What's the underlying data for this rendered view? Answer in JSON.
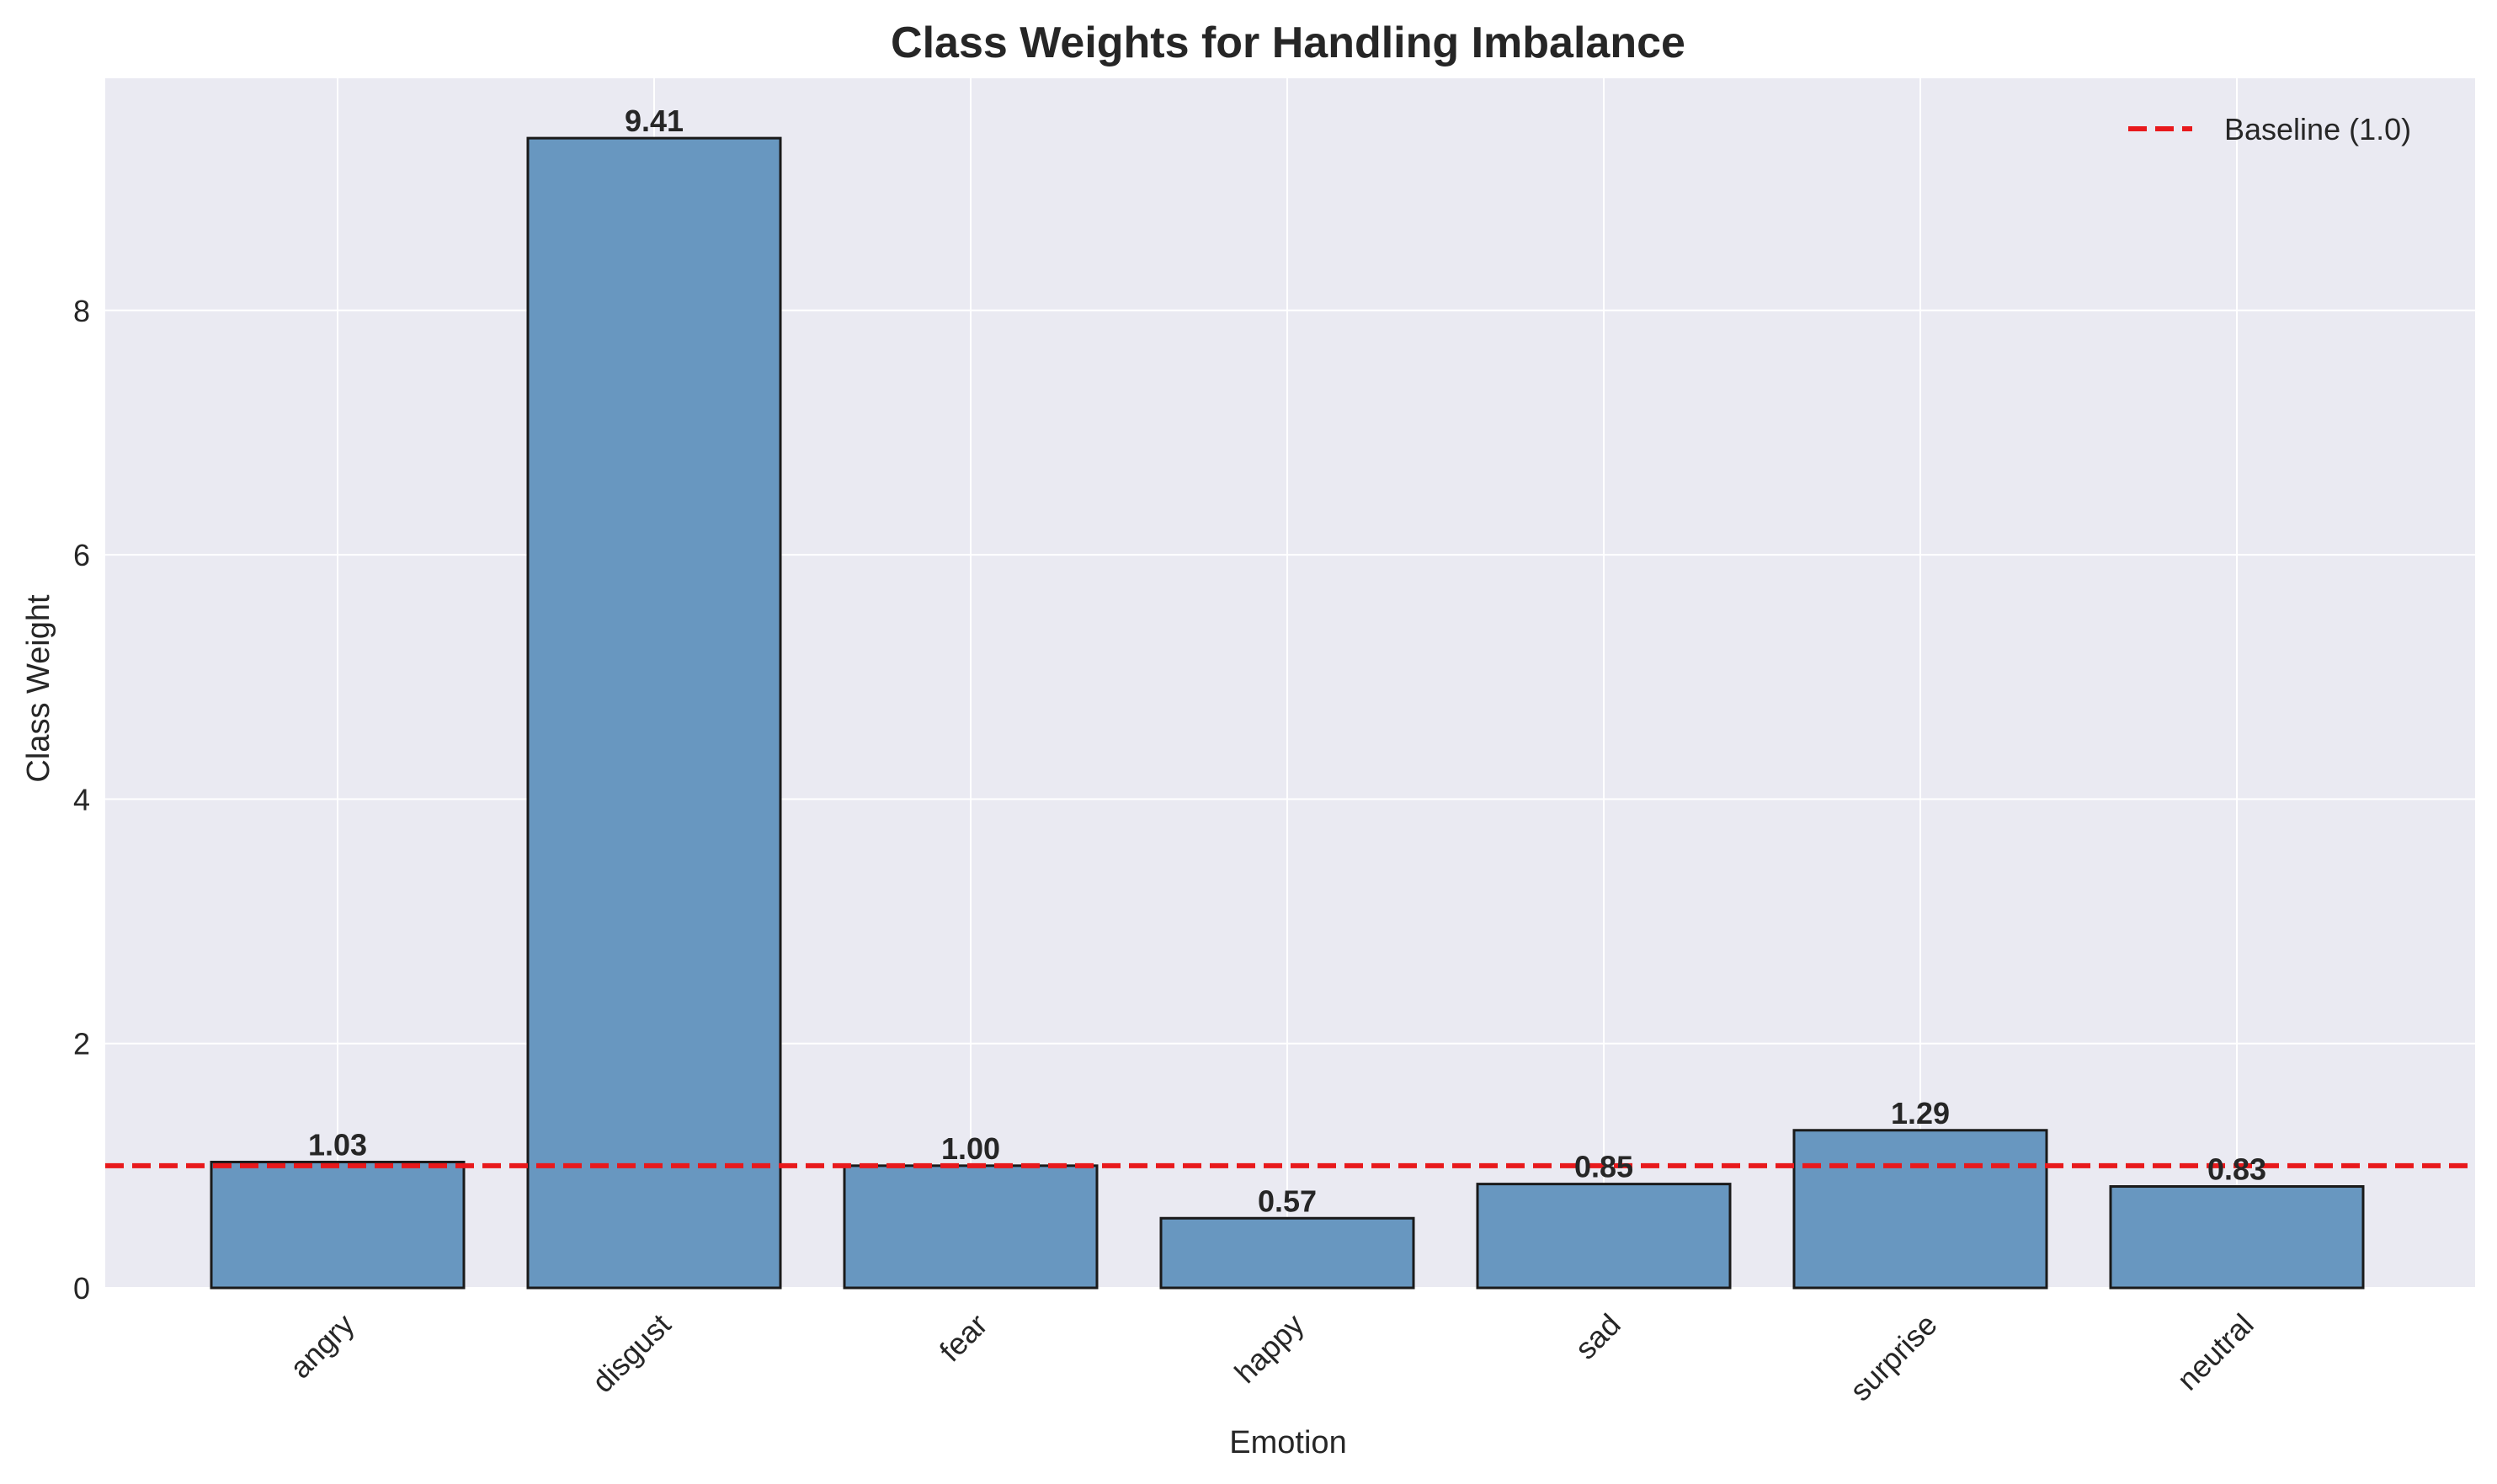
{
  "chart_data": {
    "type": "bar",
    "title": "Class Weights for Handling Imbalance",
    "xlabel": "Emotion",
    "ylabel": "Class Weight",
    "categories": [
      "angry",
      "disgust",
      "fear",
      "happy",
      "sad",
      "surprise",
      "neutral"
    ],
    "values": [
      1.03,
      9.41,
      1.0,
      0.57,
      0.85,
      1.29,
      0.83
    ],
    "value_labels": [
      "1.03",
      "9.41",
      "1.00",
      "0.57",
      "0.85",
      "1.29",
      "0.83"
    ],
    "ylim": [
      0,
      9.9
    ],
    "yticks": [
      0,
      2,
      4,
      6,
      8
    ],
    "ytick_labels": [
      "0",
      "2",
      "4",
      "6",
      "8"
    ],
    "grid": true,
    "baseline": {
      "value": 1.0,
      "label": "Baseline (1.0)",
      "color": "#e8191c",
      "style": "dashed"
    },
    "legend_position": "top-right",
    "colors": {
      "bar_fill": "#6897c0",
      "bar_edge": "#1a1a1a",
      "plot_background": "#eaeaf2",
      "grid": "#ffffff"
    }
  }
}
